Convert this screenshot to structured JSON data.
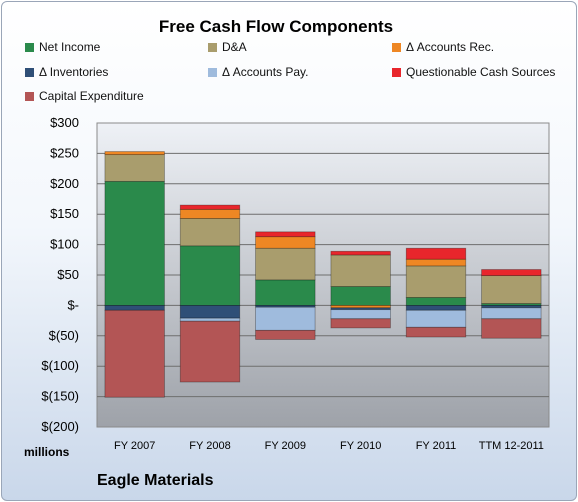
{
  "chart_data": {
    "type": "bar",
    "stacked": true,
    "title": "Free Cash Flow Components",
    "categories": [
      "FY 2007",
      "FY 2008",
      "FY 2009",
      "FY 2010",
      "FY 2011",
      "TTM 12-2011"
    ],
    "series": [
      {
        "name": "Net Income",
        "color": "#2a8a4b",
        "values": [
          204,
          98,
          42,
          31,
          13,
          3
        ]
      },
      {
        "name": "D&A",
        "color": "#a99d6d",
        "values": [
          44,
          45,
          52,
          52,
          52,
          46
        ]
      },
      {
        "name": "Δ Accounts Rec.",
        "color": "#ee8724",
        "values": [
          5,
          15,
          19,
          -4,
          11,
          0
        ]
      },
      {
        "name": "Δ Inventories",
        "color": "#2f4f77",
        "values": [
          -8,
          -21,
          -3,
          -3,
          -8,
          -4
        ]
      },
      {
        "name": "Δ Accounts Pay.",
        "color": "#9fbbdd",
        "values": [
          0,
          -5,
          -38,
          -15,
          -28,
          -18
        ]
      },
      {
        "name": "Questionable Cash Sources",
        "color": "#e8262c",
        "values": [
          0,
          7,
          8,
          6,
          18,
          10
        ]
      },
      {
        "name": "Capital Expenditure",
        "color": "#b35555",
        "values": [
          -143,
          -100,
          -15,
          -15,
          -16,
          -32
        ]
      }
    ],
    "ylim": [
      -200,
      300
    ],
    "yticks": [
      300,
      250,
      200,
      150,
      100,
      50,
      0,
      -50,
      -100,
      -150,
      -200
    ],
    "ytick_labels": [
      "$300",
      "$250",
      "$200",
      "$150",
      "$100",
      "$50",
      "$-",
      "$(50)",
      "$(100)",
      "$(150)",
      "$(200)"
    ],
    "unit_label": "millions",
    "grid": true,
    "legend_position": "top"
  },
  "company": "Eagle Materials"
}
